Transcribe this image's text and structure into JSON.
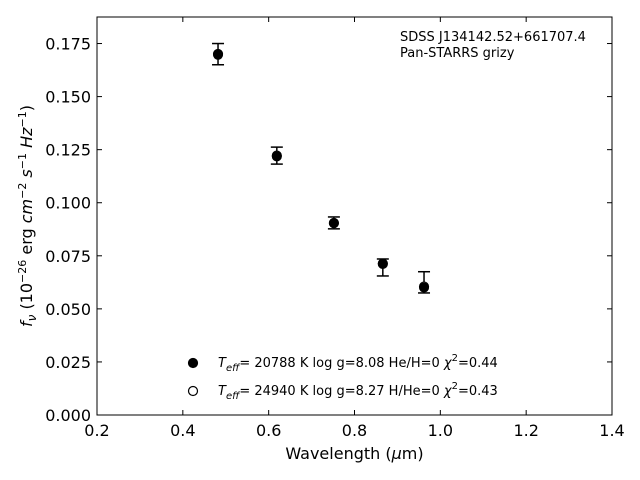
{
  "chart_data": {
    "type": "scatter",
    "title": "",
    "xlabel": "Wavelength (μm)",
    "ylabel": "f_ν (10^-26 erg cm^-2 s^-1 Hz^-1)",
    "xlim": [
      0.2,
      1.4
    ],
    "ylim": [
      0.0,
      0.1875
    ],
    "xticks": [
      0.2,
      0.4,
      0.6,
      0.8,
      1.0,
      1.2,
      1.4
    ],
    "xtick_labels": [
      "0.2",
      "0.4",
      "0.6",
      "0.8",
      "1.0",
      "1.2",
      "1.4"
    ],
    "yticks": [
      0.0,
      0.025,
      0.05,
      0.075,
      0.1,
      0.125,
      0.15,
      0.175
    ],
    "ytick_labels": [
      "0.000",
      "0.025",
      "0.050",
      "0.075",
      "0.100",
      "0.125",
      "0.150",
      "0.175"
    ],
    "grid": false,
    "annotations": [
      "SDSS J134142.52+661707.4",
      "Pan-STARRS grizy"
    ],
    "observed": {
      "x": [
        0.482,
        0.619,
        0.752,
        0.866,
        0.962
      ],
      "y": [
        0.17,
        0.1222,
        0.0905,
        0.0695,
        0.0625
      ],
      "err_low": [
        0.005,
        0.004,
        0.0028,
        0.004,
        0.005
      ],
      "err_high": [
        0.005,
        0.004,
        0.0028,
        0.004,
        0.005
      ]
    },
    "series": [
      {
        "name": "Teff= 20788 K  log g=8.08  He/H=0  χ²=0.44",
        "marker": "filled-circle",
        "x": [
          0.482,
          0.619,
          0.752,
          0.866,
          0.962
        ],
        "y": [
          0.1697,
          0.1218,
          0.0905,
          0.0714,
          0.06
        ]
      },
      {
        "name": "Teff= 24940 K  log g=8.27  H/He=0  χ²=0.43",
        "marker": "open-circle",
        "x": [
          0.482,
          0.619,
          0.752,
          0.866,
          0.962
        ],
        "y": [
          0.1701,
          0.1222,
          0.0904,
          0.0712,
          0.0605
        ]
      }
    ],
    "legend_position": "bottom-center"
  }
}
